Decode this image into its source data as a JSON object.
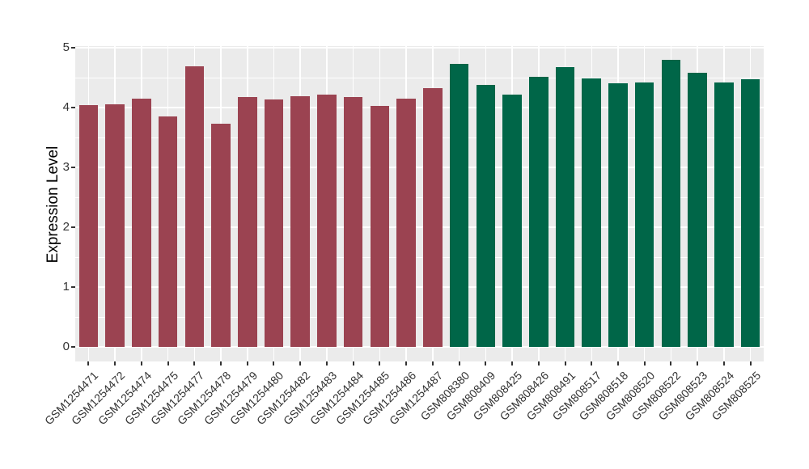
{
  "chart_data": {
    "type": "bar",
    "title": "",
    "xlabel": "",
    "ylabel": "Expression Level",
    "ylim": [
      0,
      5
    ],
    "yticks": [
      0,
      1,
      2,
      3,
      4,
      5
    ],
    "grid": true,
    "legend": "none",
    "panel_background": "#EBEBEB",
    "gridline_color": "#FFFFFF",
    "axis_text_color": "#333333",
    "tick_color": "#333333",
    "group_colors": {
      "group1": "#9B4351",
      "group2": "#006648"
    },
    "bars": [
      {
        "label": "GSM1254471",
        "value": 4.04,
        "color": "#9B4351"
      },
      {
        "label": "GSM1254472",
        "value": 4.06,
        "color": "#9B4351"
      },
      {
        "label": "GSM1254474",
        "value": 4.15,
        "color": "#9B4351"
      },
      {
        "label": "GSM1254475",
        "value": 3.85,
        "color": "#9B4351"
      },
      {
        "label": "GSM1254477",
        "value": 4.69,
        "color": "#9B4351"
      },
      {
        "label": "GSM1254478",
        "value": 3.73,
        "color": "#9B4351"
      },
      {
        "label": "GSM1254479",
        "value": 4.17,
        "color": "#9B4351"
      },
      {
        "label": "GSM1254480",
        "value": 4.13,
        "color": "#9B4351"
      },
      {
        "label": "GSM1254482",
        "value": 4.19,
        "color": "#9B4351"
      },
      {
        "label": "GSM1254483",
        "value": 4.22,
        "color": "#9B4351"
      },
      {
        "label": "GSM1254484",
        "value": 4.17,
        "color": "#9B4351"
      },
      {
        "label": "GSM1254485",
        "value": 4.03,
        "color": "#9B4351"
      },
      {
        "label": "GSM1254486",
        "value": 4.15,
        "color": "#9B4351"
      },
      {
        "label": "GSM1254487",
        "value": 4.32,
        "color": "#9B4351"
      },
      {
        "label": "GSM808380",
        "value": 4.73,
        "color": "#006648"
      },
      {
        "label": "GSM808409",
        "value": 4.38,
        "color": "#006648"
      },
      {
        "label": "GSM808425",
        "value": 4.22,
        "color": "#006648"
      },
      {
        "label": "GSM808426",
        "value": 4.52,
        "color": "#006648"
      },
      {
        "label": "GSM808491",
        "value": 4.68,
        "color": "#006648"
      },
      {
        "label": "GSM808517",
        "value": 4.49,
        "color": "#006648"
      },
      {
        "label": "GSM808518",
        "value": 4.41,
        "color": "#006648"
      },
      {
        "label": "GSM808520",
        "value": 4.42,
        "color": "#006648"
      },
      {
        "label": "GSM808522",
        "value": 4.8,
        "color": "#006648"
      },
      {
        "label": "GSM808523",
        "value": 4.58,
        "color": "#006648"
      },
      {
        "label": "GSM808524",
        "value": 4.42,
        "color": "#006648"
      },
      {
        "label": "GSM808525",
        "value": 4.47,
        "color": "#006648"
      }
    ]
  }
}
